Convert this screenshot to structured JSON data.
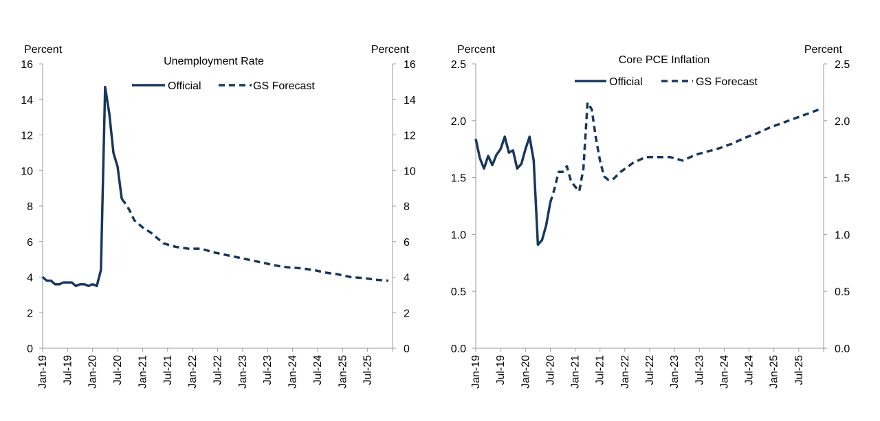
{
  "color_series": "#17375e",
  "chart_data": [
    {
      "type": "line",
      "title": "Unemployment Rate",
      "y_unit_left": "Percent",
      "y_unit_right": "Percent",
      "ylim": [
        0,
        16
      ],
      "y_ticks": [
        0,
        2,
        4,
        6,
        8,
        10,
        12,
        14,
        16
      ],
      "y_tick_labels": [
        "0",
        "2",
        "4",
        "6",
        "8",
        "10",
        "12",
        "14",
        "16"
      ],
      "x_tick_labels": [
        "Jan-19",
        "Jul-19",
        "Jan-20",
        "Jul-20",
        "Jan-21",
        "Jul-21",
        "Jan-22",
        "Jul-22",
        "Jan-23",
        "Jul-23",
        "Jan-24",
        "Jul-24",
        "Jan-25",
        "Jul-25"
      ],
      "grid": false,
      "legend_placement": "top-center",
      "x_start": "2019-01",
      "series": [
        {
          "name": "Official",
          "style": "solid",
          "x": [
            "2019-01",
            "2019-02",
            "2019-03",
            "2019-04",
            "2019-05",
            "2019-06",
            "2019-07",
            "2019-08",
            "2019-09",
            "2019-10",
            "2019-11",
            "2019-12",
            "2020-01",
            "2020-02",
            "2020-03",
            "2020-04",
            "2020-05",
            "2020-06",
            "2020-07",
            "2020-08"
          ],
          "values": [
            4.0,
            3.8,
            3.8,
            3.6,
            3.6,
            3.7,
            3.7,
            3.7,
            3.5,
            3.6,
            3.6,
            3.5,
            3.6,
            3.5,
            4.4,
            14.7,
            13.2,
            11.0,
            10.2,
            8.4
          ]
        },
        {
          "name": "GS Forecast",
          "style": "dashed",
          "x": [
            "2020-08",
            "2020-09",
            "2020-10",
            "2020-11",
            "2020-12",
            "2021-01",
            "2021-03",
            "2021-06",
            "2021-09",
            "2021-12",
            "2022-03",
            "2022-06",
            "2022-09",
            "2022-12",
            "2023-03",
            "2023-06",
            "2023-09",
            "2023-12",
            "2024-03",
            "2024-06",
            "2024-09",
            "2024-12",
            "2025-03",
            "2025-06",
            "2025-09",
            "2025-12"
          ],
          "values": [
            8.4,
            8.1,
            7.7,
            7.2,
            7.0,
            6.8,
            6.5,
            5.9,
            5.7,
            5.6,
            5.6,
            5.4,
            5.25,
            5.1,
            4.95,
            4.8,
            4.65,
            4.55,
            4.5,
            4.4,
            4.25,
            4.15,
            4.0,
            3.95,
            3.85,
            3.8
          ]
        }
      ]
    },
    {
      "type": "line",
      "title": "Core PCE Inflation",
      "y_unit_left": "Percent",
      "y_unit_right": "Percent",
      "ylim": [
        0,
        2.5
      ],
      "y_ticks": [
        0,
        0.5,
        1.0,
        1.5,
        2.0,
        2.5
      ],
      "y_tick_labels": [
        "0.0",
        "0.5",
        "1.0",
        "1.5",
        "2.0",
        "2.5"
      ],
      "x_tick_labels": [
        "Jan-19",
        "Jul-19",
        "Jan-20",
        "Jul-20",
        "Jan-21",
        "Jul-21",
        "Jan-22",
        "Jul-22",
        "Jan-23",
        "Jul-23",
        "Jan-24",
        "Jul-24",
        "Jan-25",
        "Jul-25"
      ],
      "grid": false,
      "legend_placement": "top-center",
      "x_start": "2019-01",
      "series": [
        {
          "name": "Official",
          "style": "solid",
          "x": [
            "2019-01",
            "2019-02",
            "2019-03",
            "2019-04",
            "2019-05",
            "2019-06",
            "2019-07",
            "2019-08",
            "2019-09",
            "2019-10",
            "2019-11",
            "2019-12",
            "2020-01",
            "2020-02",
            "2020-03",
            "2020-04",
            "2020-05",
            "2020-06",
            "2020-07"
          ],
          "values": [
            1.84,
            1.67,
            1.58,
            1.69,
            1.61,
            1.7,
            1.75,
            1.86,
            1.72,
            1.74,
            1.58,
            1.62,
            1.75,
            1.86,
            1.65,
            0.91,
            0.95,
            1.08,
            1.28
          ]
        },
        {
          "name": "GS Forecast",
          "style": "dashed",
          "x": [
            "2020-07",
            "2020-08",
            "2020-09",
            "2020-10",
            "2020-11",
            "2020-12",
            "2021-01",
            "2021-02",
            "2021-03",
            "2021-04",
            "2021-05",
            "2021-06",
            "2021-07",
            "2021-08",
            "2021-09",
            "2021-10",
            "2021-12",
            "2022-03",
            "2022-06",
            "2022-09",
            "2022-12",
            "2023-03",
            "2023-06",
            "2023-09",
            "2023-12",
            "2024-03",
            "2024-06",
            "2024-09",
            "2024-12",
            "2025-03",
            "2025-06",
            "2025-09",
            "2025-12"
          ],
          "values": [
            1.28,
            1.4,
            1.55,
            1.55,
            1.6,
            1.47,
            1.42,
            1.38,
            1.58,
            2.16,
            2.1,
            1.85,
            1.65,
            1.51,
            1.48,
            1.48,
            1.55,
            1.63,
            1.68,
            1.68,
            1.68,
            1.65,
            1.7,
            1.73,
            1.76,
            1.8,
            1.85,
            1.89,
            1.94,
            1.98,
            2.02,
            2.06,
            2.1
          ]
        }
      ]
    }
  ]
}
